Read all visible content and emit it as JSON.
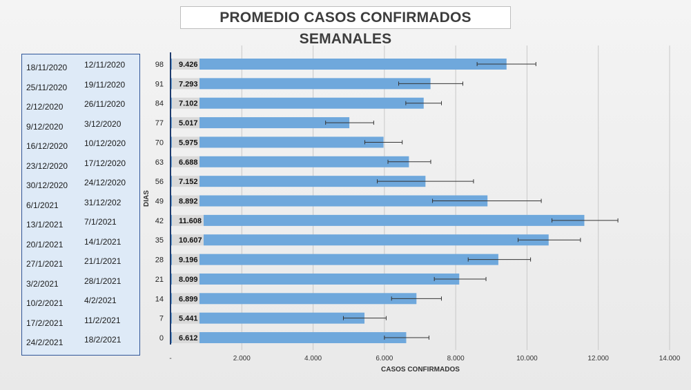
{
  "chart_data": {
    "type": "bar",
    "orientation": "horizontal",
    "title": "PROMEDIO CASOS CONFIRMADOS SEMANALES",
    "xlabel": "CASOS CONFIRMADOS",
    "ylabel": "DIAS",
    "xlim": [
      0,
      14000
    ],
    "x_ticks": [
      "-",
      "2.000",
      "4.000",
      "6.000",
      "8.000",
      "10.000",
      "12.000",
      "14.000"
    ],
    "x_tick_values": [
      0,
      2000,
      4000,
      6000,
      8000,
      10000,
      12000,
      14000
    ],
    "grid": true,
    "bar_color": "#6fa8dc",
    "categories": [
      "98",
      "91",
      "84",
      "77",
      "70",
      "63",
      "56",
      "49",
      "42",
      "35",
      "28",
      "21",
      "14",
      "7",
      "0"
    ],
    "values": [
      9426,
      7293,
      7102,
      5017,
      5975,
      6688,
      7152,
      8892,
      11608,
      10607,
      9196,
      8099,
      6899,
      5441,
      6612
    ],
    "value_labels": [
      "9.426",
      "7.293",
      "7.102",
      "5.017",
      "5.975",
      "6.688",
      "7.152",
      "8.892",
      "11.608",
      "10.607",
      "9.196",
      "8.099",
      "6.899",
      "5.441",
      "6.612"
    ],
    "error_low": [
      8600,
      6400,
      6600,
      4350,
      5450,
      6100,
      5800,
      7350,
      10700,
      9750,
      8350,
      7400,
      6200,
      4850,
      6000
    ],
    "error_high": [
      10250,
      8200,
      7600,
      5700,
      6500,
      7300,
      8500,
      10400,
      12550,
      11500,
      10100,
      8850,
      7600,
      6050,
      7250
    ]
  },
  "date_ranges": [
    {
      "end": "18/11/2020",
      "start": "12/11/2020"
    },
    {
      "end": "25/11/2020",
      "start": "19/11/2020"
    },
    {
      "end": "2/12/2020",
      "start": "26/11/2020"
    },
    {
      "end": "9/12/2020",
      "start": "3/12/2020"
    },
    {
      "end": "16/12/2020",
      "start": "10/12/2020"
    },
    {
      "end": "23/12/2020",
      "start": "17/12/2020"
    },
    {
      "end": "30/12/2020",
      "start": "24/12/2020"
    },
    {
      "end": "6/1/2021",
      "start": "31/12/202"
    },
    {
      "end": "13/1/2021",
      "start": "7/1/2021"
    },
    {
      "end": "20/1/2021",
      "start": "14/1/2021"
    },
    {
      "end": "27/1/2021",
      "start": "21/1/2021"
    },
    {
      "end": "3/2/2021",
      "start": "28/1/2021"
    },
    {
      "end": "10/2/2021",
      "start": "4/2/2021"
    },
    {
      "end": "17/2/2021",
      "start": "11/2/2021"
    },
    {
      "end": "24/2/2021",
      "start": "18/2/2021"
    }
  ]
}
